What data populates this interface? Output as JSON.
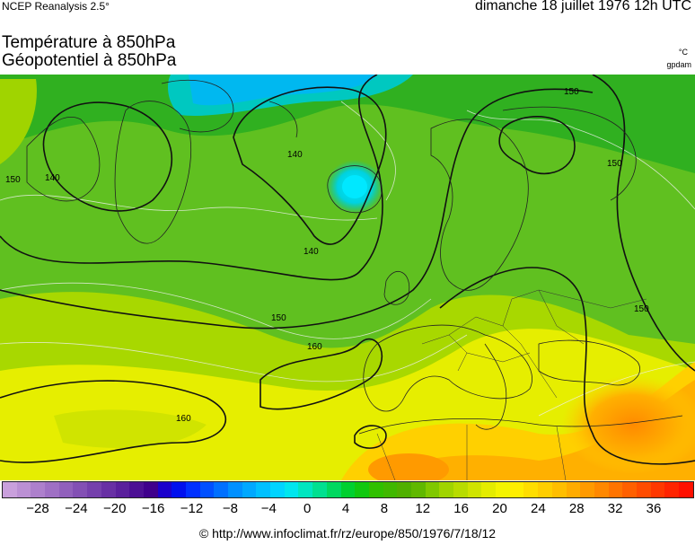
{
  "header": {
    "source": "NCEP Reanalysis 2.5°",
    "datetime": "dimanche 18 juillet 1976 12h UTC",
    "title_temperature": "Température à 850hPa",
    "title_geopotential": "Géopotentiel à 850hPa",
    "unit_temperature": "°C",
    "unit_geopotential": "gpdam"
  },
  "map": {
    "contour_labels": [
      "140",
      "140",
      "140",
      "150",
      "150",
      "150",
      "150",
      "150",
      "160",
      "160"
    ]
  },
  "colorbar": {
    "tick_labels": [
      "−28",
      "−24",
      "−20",
      "−16",
      "−12",
      "−8",
      "−4",
      "0",
      "4",
      "8",
      "12",
      "16",
      "20",
      "24",
      "28",
      "32",
      "36"
    ],
    "colors": [
      "#c9a0dc",
      "#bb90d4",
      "#ad80cc",
      "#9f70c4",
      "#9160bc",
      "#8350b4",
      "#7540ac",
      "#6830a4",
      "#5a209c",
      "#4c1094",
      "#3f008c",
      "#1a00cc",
      "#0010ee",
      "#0030ff",
      "#0050ff",
      "#0070ff",
      "#0090ff",
      "#00a8ff",
      "#00c0ff",
      "#00d4ff",
      "#00e6ee",
      "#00e6c0",
      "#00e090",
      "#00d860",
      "#00d030",
      "#10c810",
      "#30c000",
      "#40b800",
      "#50b000",
      "#60b800",
      "#80c800",
      "#a0d400",
      "#b8dc00",
      "#d0e400",
      "#e4ec00",
      "#f4f400",
      "#ffee00",
      "#ffde00",
      "#ffce00",
      "#ffbe00",
      "#ffac00",
      "#ff9a00",
      "#ff8800",
      "#ff7400",
      "#ff6000",
      "#ff4c00",
      "#ff3800",
      "#ff2400",
      "#ff1000"
    ]
  },
  "footer": {
    "credit": "© http://www.infoclimat.fr/rz/europe/850/1976/7/18/12"
  }
}
